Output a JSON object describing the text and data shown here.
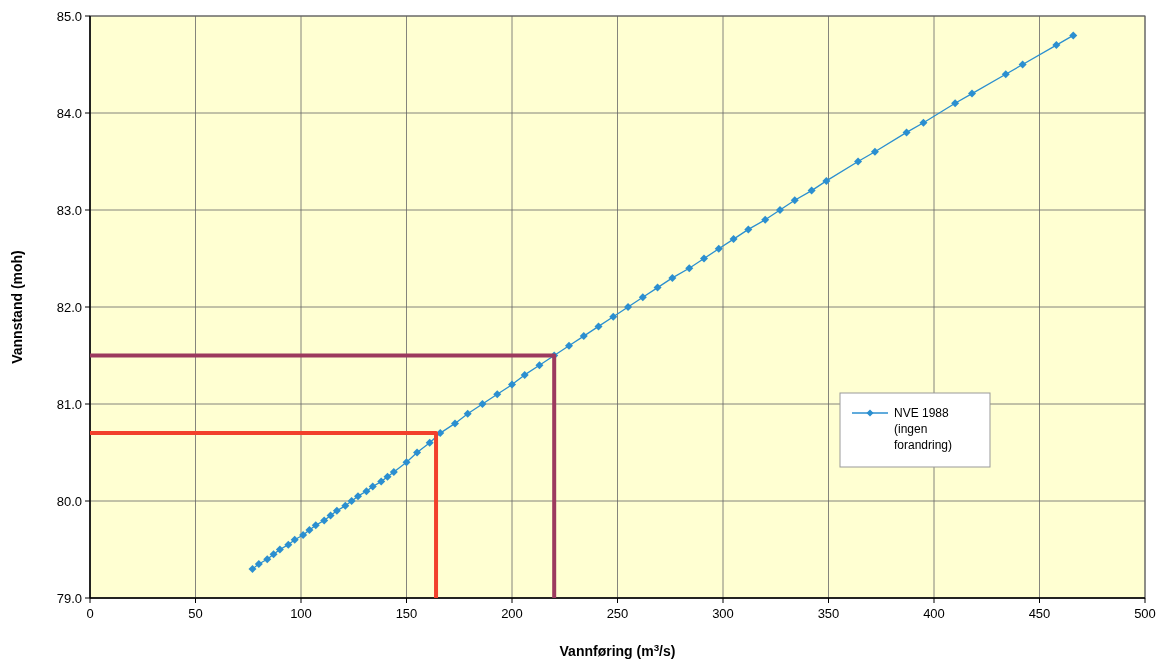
{
  "chart_data": {
    "type": "line",
    "xlabel": "Vannføring (m$^{3}$/s)",
    "ylabel": "Vannstand (moh)",
    "xlim": [
      0,
      500
    ],
    "xticks": [
      0,
      50,
      100,
      150,
      200,
      250,
      300,
      350,
      400,
      450,
      500
    ],
    "ylim": [
      79,
      85
    ],
    "yticks": [
      {
        "value": 79,
        "label": "79.0"
      },
      {
        "value": 80,
        "label": "80.0"
      },
      {
        "value": 81,
        "label": "81.0"
      },
      {
        "value": 82,
        "label": "82.0"
      },
      {
        "value": 83,
        "label": "83.0"
      },
      {
        "value": 84,
        "label": "84.0"
      },
      {
        "value": 85,
        "label": "85.0"
      }
    ],
    "grid": true,
    "legend": "right",
    "marker": "diamond",
    "line_style": "solid",
    "series": [
      {
        "name": "NVE 1988 (ingen forandring)",
        "color": "#2b8fd0",
        "x": [
          77,
          80,
          84,
          87,
          90,
          94,
          97,
          101,
          104,
          107,
          111,
          114,
          117,
          121,
          124,
          127,
          131,
          134,
          138,
          141,
          144,
          150,
          155,
          161,
          166,
          173,
          179,
          186,
          193,
          200,
          206,
          213,
          220,
          227,
          234,
          241,
          248,
          255,
          262,
          269,
          276,
          284,
          291,
          298,
          305,
          312,
          320,
          327,
          334,
          342,
          349,
          364,
          372,
          387,
          395,
          410,
          418,
          434,
          442,
          458,
          466
        ],
        "values": [
          79.3,
          79.35,
          79.4,
          79.45,
          79.5,
          79.55,
          79.6,
          79.65,
          79.7,
          79.75,
          79.8,
          79.85,
          79.9,
          79.95,
          80.0,
          80.05,
          80.1,
          80.15,
          80.2,
          80.25,
          80.3,
          80.4,
          80.5,
          80.6,
          80.7,
          80.8,
          80.9,
          81.0,
          81.1,
          81.2,
          81.3,
          81.4,
          81.5,
          81.6,
          81.7,
          81.8,
          81.9,
          82.0,
          82.1,
          82.2,
          82.3,
          82.4,
          82.5,
          82.6,
          82.7,
          82.8,
          82.9,
          83.0,
          83.1,
          83.2,
          83.3,
          83.5,
          83.6,
          83.8,
          83.9,
          84.1,
          84.2,
          84.4,
          84.5,
          84.7,
          84.8
        ]
      },
      {
        "type": "line",
        "color": "#f2402c",
        "marker": "none",
        "x": [
          0,
          164,
          164
        ],
        "values": [
          80.7,
          80.7,
          79
        ]
      },
      {
        "type": "line",
        "color": "#9c3a5e",
        "marker": "none",
        "x": [
          0,
          220,
          220
        ],
        "values": [
          81.5,
          81.5,
          79
        ]
      }
    ]
  }
}
